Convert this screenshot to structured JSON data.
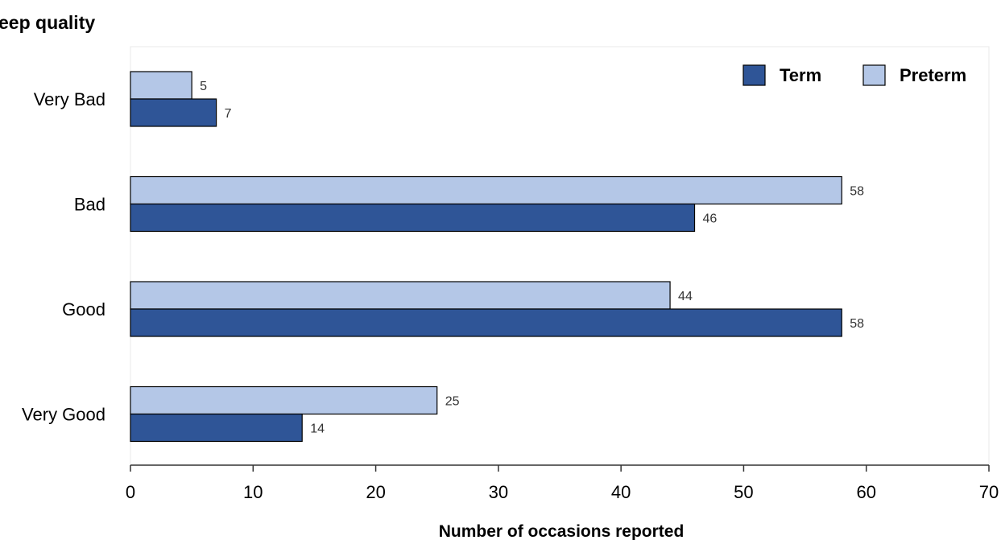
{
  "chart_data": {
    "type": "bar",
    "orientation": "horizontal",
    "title": "eep quality",
    "xlabel": "Number of occasions reported",
    "ylabel": "",
    "categories": [
      "Very Bad",
      "Bad",
      "Good",
      "Very Good"
    ],
    "series": [
      {
        "name": "Term",
        "color": "#2f5597",
        "values": [
          7,
          46,
          58,
          14
        ]
      },
      {
        "name": "Preterm",
        "color": "#b4c7e7",
        "values": [
          5,
          58,
          44,
          25
        ]
      }
    ],
    "xlim": [
      0,
      70
    ],
    "xticks": [
      0,
      10,
      20,
      30,
      40,
      50,
      60,
      70
    ],
    "grid": false,
    "legend_position": "top-right"
  }
}
